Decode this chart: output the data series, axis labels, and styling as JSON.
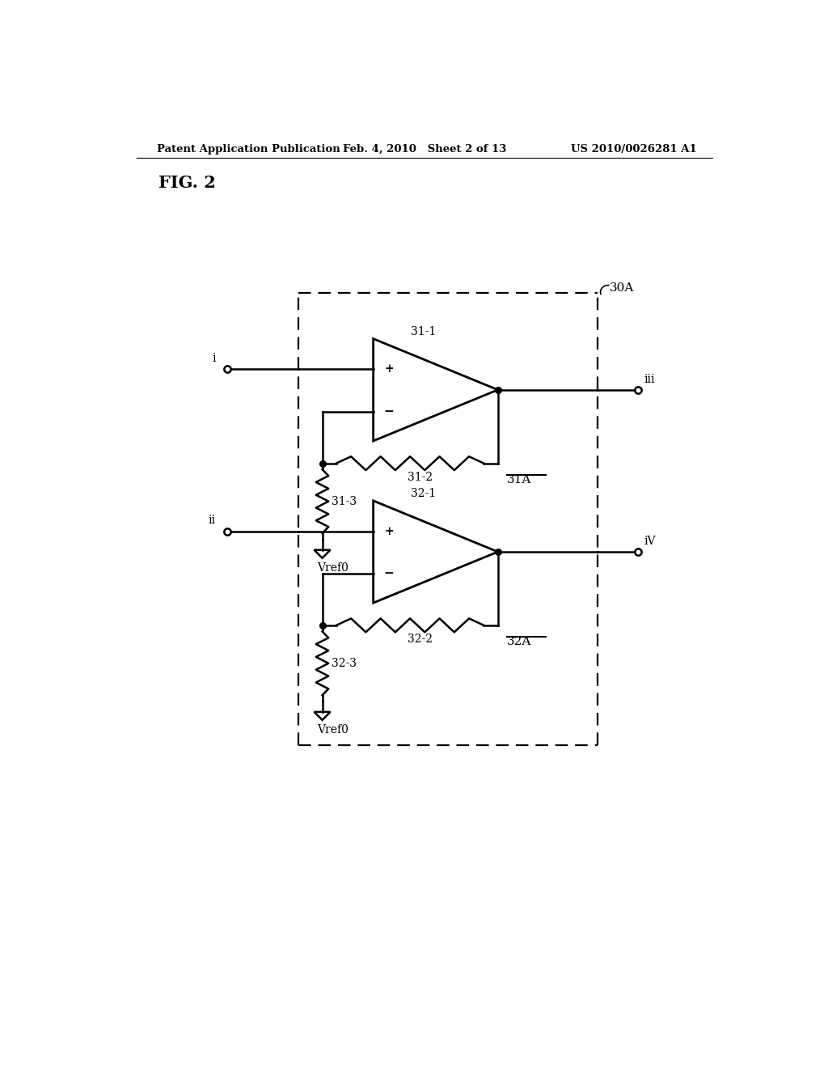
{
  "title": "FIG. 2",
  "header_left": "Patent Application Publication",
  "header_center": "Feb. 4, 2010   Sheet 2 of 13",
  "header_right": "US 2010/0026281 A1",
  "background_color": "#ffffff",
  "line_color": "#000000",
  "label_30A": "30A",
  "label_31A": "31A",
  "label_32A": "32A",
  "label_31_1": "31-1",
  "label_31_2": "31-2",
  "label_31_3": "31-3",
  "label_32_1": "32-1",
  "label_32_2": "32-2",
  "label_32_3": "32-3",
  "label_i": "i",
  "label_ii": "ii",
  "label_iii": "iii",
  "label_iv": "iV",
  "label_vref0_1": "Vref0",
  "label_vref0_2": "Vref0"
}
